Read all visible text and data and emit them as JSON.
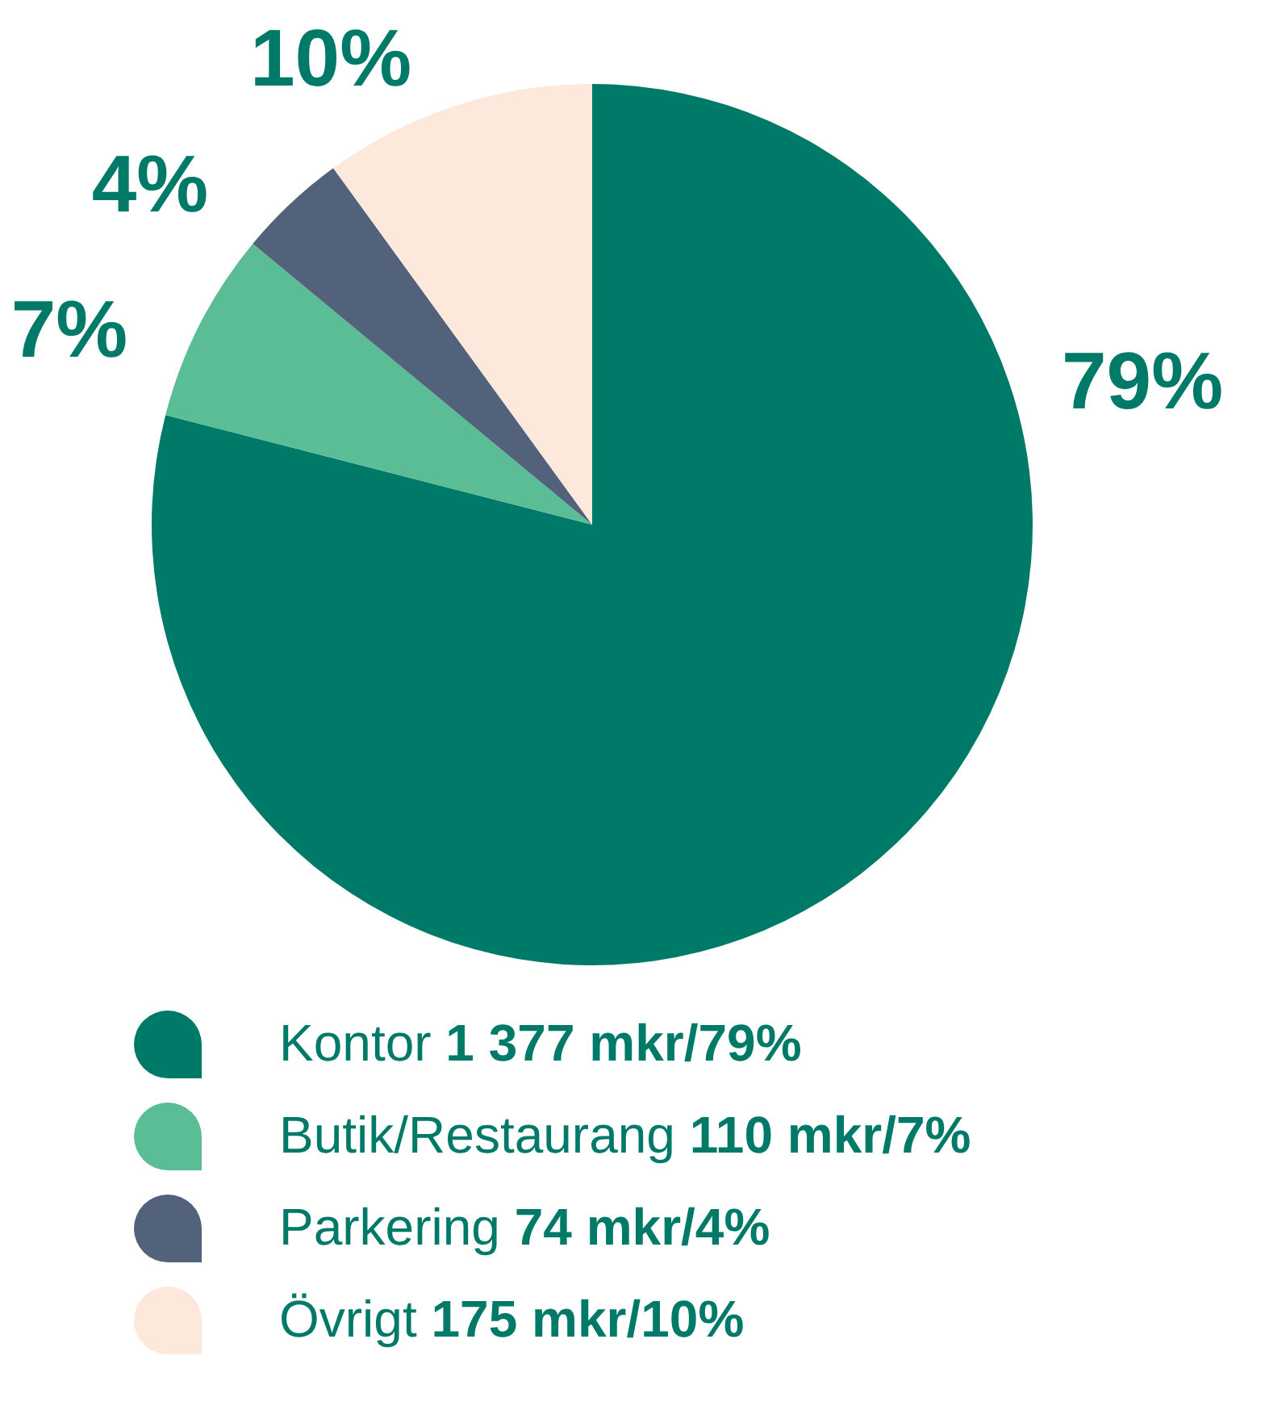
{
  "chart_data": {
    "type": "pie",
    "categories": [
      "Kontor 1 377 mkr/79%",
      "Butik/Restaurang 110 mkr/7%",
      "Parkering 74 mkr/4%",
      "Övrigt 175 mkr/10%"
    ],
    "values": [
      79,
      7,
      4,
      10
    ],
    "value_labels": [
      "79%",
      "7%",
      "4%",
      "10%"
    ],
    "colors": [
      "#007a68",
      "#5bbd96",
      "#52627a",
      "#fde9dc"
    ],
    "legend": "bottom"
  }
}
